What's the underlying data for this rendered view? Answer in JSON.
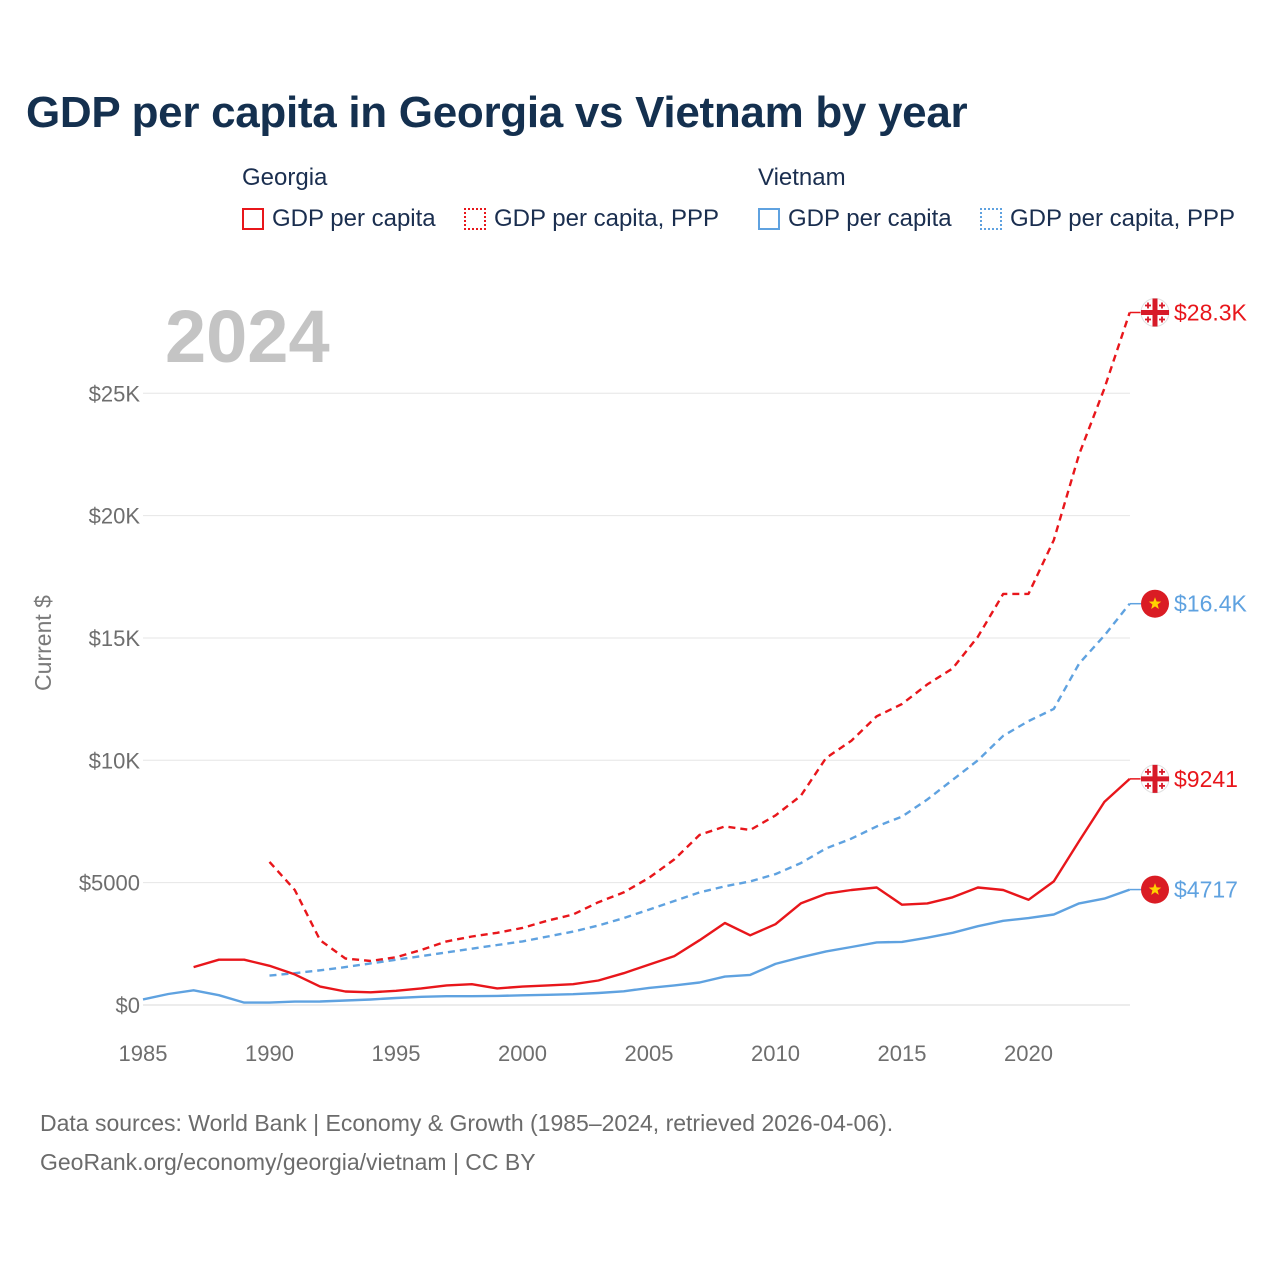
{
  "chart_data": {
    "type": "line",
    "title": "GDP per capita in Georgia vs Vietnam by year",
    "year_overlay": "2024",
    "ylabel": "Current $",
    "xlabel": "",
    "xlim": [
      1985,
      2024
    ],
    "ylim": [
      0,
      28300
    ],
    "x_ticks": [
      1985,
      1990,
      1995,
      2000,
      2005,
      2010,
      2015,
      2020
    ],
    "x_tick_labels": [
      "1985",
      "1990",
      "1995",
      "2000",
      "2005",
      "2010",
      "2015",
      "2020"
    ],
    "y_ticks": [
      0,
      5000,
      10000,
      15000,
      20000,
      25000
    ],
    "y_tick_labels": [
      "$0",
      "$5000",
      "$10K",
      "$15K",
      "$20K",
      "$25K"
    ],
    "grid": true,
    "legend_groups": [
      {
        "country": "Georgia",
        "items": [
          "GDP per capita",
          "GDP per capita, PPP"
        ]
      },
      {
        "country": "Vietnam",
        "items": [
          "GDP per capita",
          "GDP per capita, PPP"
        ]
      }
    ],
    "series": [
      {
        "name": "Georgia GDP per capita, PPP",
        "country": "Georgia",
        "metric": "GDP per capita, PPP",
        "color": "#e8161b",
        "dash": "dashed",
        "end_label": "$28.3K",
        "end_icon": "georgia-flag-icon",
        "x": [
          1990,
          1991,
          1992,
          1993,
          1994,
          1995,
          1996,
          1997,
          1998,
          1999,
          2000,
          2001,
          2002,
          2003,
          2004,
          2005,
          2006,
          2007,
          2008,
          2009,
          2010,
          2011,
          2012,
          2013,
          2014,
          2015,
          2016,
          2017,
          2018,
          2019,
          2020,
          2021,
          2022,
          2023,
          2024
        ],
        "values": [
          5850,
          4700,
          2650,
          1900,
          1800,
          1950,
          2250,
          2600,
          2800,
          2950,
          3150,
          3450,
          3700,
          4200,
          4600,
          5200,
          5950,
          6950,
          7300,
          7150,
          7750,
          8550,
          10100,
          10800,
          11800,
          12300,
          13100,
          13750,
          15050,
          16800,
          16800,
          19000,
          22500,
          25200,
          28300
        ]
      },
      {
        "name": "Vietnam GDP per capita, PPP",
        "country": "Vietnam",
        "metric": "GDP per capita, PPP",
        "color": "#5fa2e0",
        "dash": "dashed",
        "end_label": "$16.4K",
        "end_icon": "vietnam-flag-icon",
        "x": [
          1990,
          1991,
          1992,
          1993,
          1994,
          1995,
          1996,
          1997,
          1998,
          1999,
          2000,
          2001,
          2002,
          2003,
          2004,
          2005,
          2006,
          2007,
          2008,
          2009,
          2010,
          2011,
          2012,
          2013,
          2014,
          2015,
          2016,
          2017,
          2018,
          2019,
          2020,
          2021,
          2022,
          2023,
          2024
        ],
        "values": [
          1200,
          1300,
          1420,
          1550,
          1700,
          1850,
          2000,
          2150,
          2300,
          2450,
          2600,
          2800,
          3000,
          3250,
          3550,
          3900,
          4250,
          4600,
          4850,
          5050,
          5350,
          5800,
          6400,
          6800,
          7300,
          7700,
          8400,
          9200,
          10000,
          11000,
          11600,
          12100,
          13950,
          15100,
          16400
        ]
      },
      {
        "name": "Georgia GDP per capita",
        "country": "Georgia",
        "metric": "GDP per capita",
        "color": "#e8161b",
        "dash": "solid",
        "end_label": "$9241",
        "end_icon": "georgia-flag-icon",
        "x": [
          1987,
          1988,
          1989,
          1990,
          1991,
          1992,
          1993,
          1994,
          1995,
          1996,
          1997,
          1998,
          1999,
          2000,
          2001,
          2002,
          2003,
          2004,
          2005,
          2006,
          2007,
          2008,
          2009,
          2010,
          2011,
          2012,
          2013,
          2014,
          2015,
          2016,
          2017,
          2018,
          2019,
          2020,
          2021,
          2022,
          2023,
          2024
        ],
        "values": [
          1550,
          1850,
          1850,
          1600,
          1250,
          750,
          550,
          520,
          580,
          680,
          800,
          850,
          680,
          750,
          800,
          850,
          1000,
          1300,
          1650,
          2000,
          2650,
          3350,
          2850,
          3300,
          4150,
          4550,
          4700,
          4800,
          4100,
          4150,
          4400,
          4800,
          4700,
          4300,
          5050,
          6700,
          8300,
          9241
        ]
      },
      {
        "name": "Vietnam GDP per capita",
        "country": "Vietnam",
        "metric": "GDP per capita",
        "color": "#5fa2e0",
        "dash": "solid",
        "end_label": "$4717",
        "end_icon": "vietnam-flag-icon",
        "x": [
          1985,
          1986,
          1987,
          1988,
          1989,
          1990,
          1991,
          1992,
          1993,
          1994,
          1995,
          1996,
          1997,
          1998,
          1999,
          2000,
          2001,
          2002,
          2003,
          2004,
          2005,
          2006,
          2007,
          2008,
          2009,
          2010,
          2011,
          2012,
          2013,
          2014,
          2015,
          2016,
          2017,
          2018,
          2019,
          2020,
          2021,
          2022,
          2023,
          2024
        ],
        "values": [
          230,
          450,
          600,
          400,
          100,
          100,
          140,
          145,
          185,
          225,
          285,
          335,
          360,
          360,
          370,
          395,
          415,
          440,
          490,
          560,
          700,
          800,
          920,
          1160,
          1230,
          1680,
          1950,
          2190,
          2370,
          2560,
          2580,
          2750,
          2950,
          3220,
          3440,
          3550,
          3700,
          4150,
          4350,
          4717
        ]
      }
    ]
  },
  "legend": {
    "georgia_title": "Georgia",
    "vietnam_title": "Vietnam",
    "georgia_gdp": "GDP per capita",
    "georgia_ppp": "GDP per capita, PPP",
    "vietnam_gdp": "GDP per capita",
    "vietnam_ppp": "GDP per capita, PPP"
  },
  "colors": {
    "georgia": "#e8161b",
    "vietnam": "#5fa2e0",
    "title": "#14304f",
    "year_overlay": "#c4c4c4",
    "grid": "#e6e6e6",
    "vietnam_flag_bg": "#da1c24",
    "vietnam_flag_star": "#ffd200"
  },
  "footer": {
    "line1": "Data sources: World Bank | Economy & Growth (1985–2024, retrieved 2026-04-06).",
    "line2": "GeoRank.org/economy/georgia/vietnam | CC BY"
  }
}
